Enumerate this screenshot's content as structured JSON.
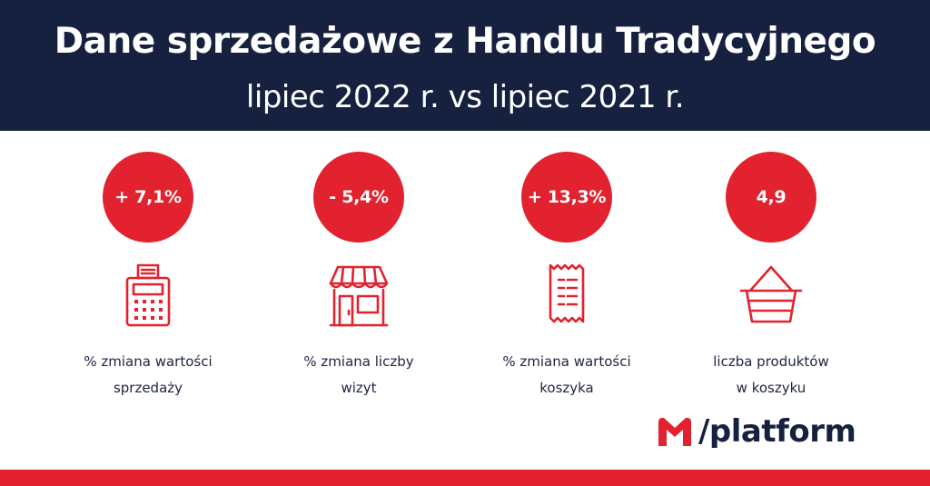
{
  "header": {
    "title": "Dane sprzedażowe z Handlu Tradycyjnego",
    "subtitle": "lipiec 2022 r. vs lipiec 2021 r."
  },
  "stats": [
    {
      "value": "+ 7,1%",
      "label_line1": "% zmiana wartości",
      "label_line2": "sprzedaży",
      "icon": "cash-register-icon"
    },
    {
      "value": "- 5,4%",
      "label_line1": "% zmiana liczby",
      "label_line2": "wizyt",
      "icon": "shop-icon"
    },
    {
      "value": "+ 13,3%",
      "label_line1": "% zmiana wartości",
      "label_line2": "koszyka",
      "icon": "receipt-icon"
    },
    {
      "value": "4,9",
      "label_line1": "liczba produktów",
      "label_line2": "w koszyku",
      "icon": "basket-icon"
    }
  ],
  "logo": {
    "text": "/platform"
  },
  "colors": {
    "navy": "#16213f",
    "red": "#e2222e",
    "white": "#ffffff"
  }
}
